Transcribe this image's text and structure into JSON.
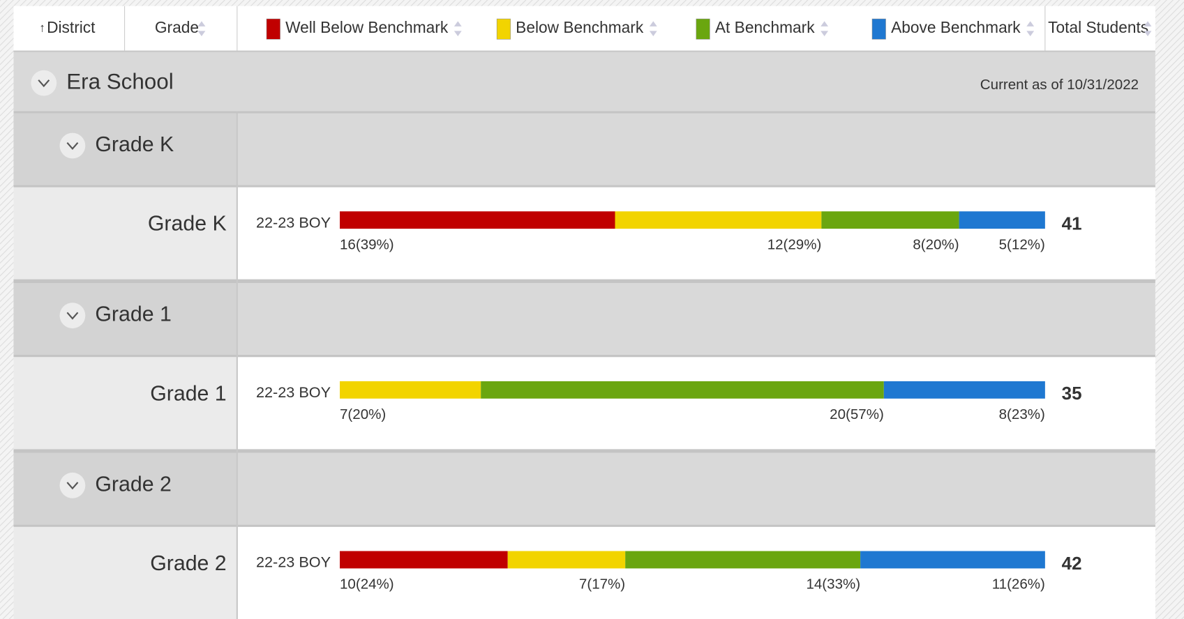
{
  "header": {
    "district": "District",
    "grade": "Grade",
    "total": "Total Students"
  },
  "levels": [
    {
      "name": "Well Below Benchmark",
      "color": "#c00000"
    },
    {
      "name": "Below Benchmark",
      "color": "#f2d400"
    },
    {
      "name": "At Benchmark",
      "color": "#6aa60f"
    },
    {
      "name": "Above Benchmark",
      "color": "#1f78d1"
    }
  ],
  "school": {
    "name": "Era School",
    "note": "Current as of 10/31/2022"
  },
  "groups": [
    {
      "label": "Grade K",
      "rows": [
        {
          "label": "Grade K",
          "period": "22-23 BOY",
          "values": [
            16,
            12,
            8,
            5
          ],
          "value_labels": [
            "16(39%)",
            "12(29%)",
            "8(20%)",
            "5(12%)"
          ],
          "total": 41
        }
      ]
    },
    {
      "label": "Grade 1",
      "rows": [
        {
          "label": "Grade 1",
          "period": "22-23 BOY",
          "values": [
            null,
            7,
            20,
            8
          ],
          "value_labels": [
            null,
            "7(20%)",
            "20(57%)",
            "8(23%)"
          ],
          "total": 35
        }
      ]
    },
    {
      "label": "Grade 2",
      "rows": [
        {
          "label": "Grade 2",
          "period": "22-23 BOY",
          "values": [
            10,
            7,
            14,
            11
          ],
          "value_labels": [
            "10(24%)",
            "7(17%)",
            "14(33%)",
            "11(26%)"
          ],
          "total": 42
        }
      ]
    }
  ]
}
